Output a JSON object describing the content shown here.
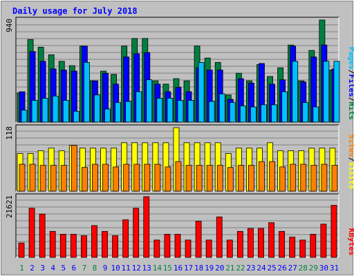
{
  "chart_data": [
    {
      "type": "bar",
      "title": "Daily usage for July 2018",
      "categories": [
        "1",
        "2",
        "3",
        "4",
        "5",
        "6",
        "7",
        "8",
        "9",
        "10",
        "11",
        "12",
        "13",
        "14",
        "15",
        "16",
        "17",
        "18",
        "19",
        "20",
        "21",
        "22",
        "23",
        "24",
        "25",
        "26",
        "27",
        "28",
        "29",
        "30",
        "31"
      ],
      "weekend_days": [
        "1",
        "7",
        "8",
        "14",
        "15",
        "21",
        "22",
        "28",
        "29"
      ],
      "ymax_label": "940",
      "series": [
        {
          "name": "Hits",
          "color": "#008040",
          "values": [
            270,
            760,
            690,
            620,
            560,
            520,
            700,
            380,
            470,
            440,
            700,
            770,
            770,
            380,
            350,
            400,
            380,
            700,
            590,
            550,
            250,
            450,
            380,
            530,
            420,
            500,
            710,
            380,
            660,
            940,
            480
          ]
        },
        {
          "name": "Files",
          "color": "#0000ff",
          "values": [
            280,
            650,
            560,
            490,
            480,
            470,
            700,
            380,
            450,
            350,
            600,
            630,
            640,
            350,
            280,
            320,
            280,
            500,
            480,
            480,
            210,
            400,
            360,
            540,
            350,
            390,
            700,
            370,
            600,
            710,
            490
          ]
        },
        {
          "name": "Pages",
          "color": "#00c0ff",
          "values": [
            110,
            200,
            220,
            240,
            200,
            100,
            550,
            250,
            120,
            180,
            190,
            280,
            390,
            220,
            220,
            200,
            200,
            550,
            190,
            260,
            180,
            150,
            140,
            160,
            160,
            280,
            560,
            180,
            140,
            560,
            560
          ]
        }
      ]
    },
    {
      "type": "bar",
      "ymax_label": "118",
      "series": [
        {
          "name": "Visits",
          "color": "#ffff00",
          "values": [
            70,
            70,
            75,
            80,
            75,
            85,
            80,
            80,
            80,
            80,
            90,
            90,
            90,
            90,
            90,
            118,
            90,
            90,
            90,
            90,
            70,
            80,
            80,
            80,
            90,
            75,
            75,
            75,
            80,
            80,
            80
          ]
        },
        {
          "name": "Sites",
          "color": "#ff8000",
          "values": [
            50,
            50,
            48,
            48,
            48,
            85,
            44,
            50,
            50,
            45,
            50,
            50,
            50,
            50,
            45,
            55,
            48,
            48,
            48,
            48,
            44,
            48,
            48,
            55,
            55,
            45,
            50,
            50,
            48,
            50,
            48
          ]
        }
      ]
    },
    {
      "type": "bar",
      "ymax_label": "21621",
      "series": [
        {
          "name": "KBytes",
          "color": "#ff0000",
          "values": [
            5000,
            17000,
            15000,
            9000,
            8000,
            8000,
            7500,
            11000,
            9000,
            7500,
            13000,
            17000,
            21000,
            6000,
            8000,
            8000,
            6000,
            12500,
            6000,
            14000,
            6000,
            9000,
            10000,
            10000,
            12000,
            9000,
            7000,
            6000,
            8000,
            11500,
            18000
          ]
        }
      ]
    }
  ],
  "legend": {
    "top": [
      {
        "text": "Hits",
        "color": "#008040"
      },
      {
        "text": "/",
        "color": "#000000"
      },
      {
        "text": "Files",
        "color": "#0000ff"
      },
      {
        "text": "/",
        "color": "#000000"
      },
      {
        "text": "Pages",
        "color": "#00c0ff"
      }
    ],
    "middle": [
      {
        "text": "Visits",
        "color": "#ffff00"
      },
      {
        "text": "/",
        "color": "#000000"
      },
      {
        "text": "Sites",
        "color": "#ff8000"
      }
    ],
    "bottom": [
      {
        "text": "KBytes",
        "color": "#ff0000"
      }
    ]
  },
  "day_colors": {
    "weekday": "#0000ff",
    "weekend": "#008040"
  }
}
